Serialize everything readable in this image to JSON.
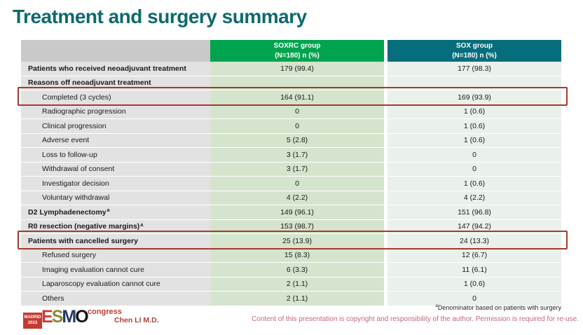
{
  "slide": {
    "title": "Treatment and surgery summary",
    "footnote_marker": "a",
    "footnote": "Denominator based on patients with surgery",
    "presenter": "Chen LI M.D.",
    "copyright": "Content of this presentation is copyright and responsibility of the author. Permission is required for re-use.",
    "logo": {
      "location": "MADRID",
      "year": "2023",
      "letters": [
        "E",
        "S",
        "M",
        "O"
      ],
      "congress": "congress"
    }
  },
  "colors": {
    "title": "#0e6a6e",
    "soxrc_header": "#00a44f",
    "sox_header": "#056d7c",
    "highlight_box": "#a63a2e"
  },
  "table": {
    "columns": [
      {
        "name": "SOXRC group",
        "sub": "(N=180)  n (%)"
      },
      {
        "name": "SOX group",
        "sub": "(N=180)  n (%)"
      }
    ],
    "rows": [
      {
        "label": "Patients who received neoadjuvant treatment",
        "sup": "",
        "soxrc": "179 (99.4)",
        "sox": "177 (98.3)",
        "bold": true,
        "indent": false,
        "boxed": false
      },
      {
        "label": "Reasons off neoadjuvant treatment",
        "sup": "",
        "soxrc": "",
        "sox": "",
        "bold": true,
        "indent": false,
        "boxed": false
      },
      {
        "label": "Completed (3 cycles)",
        "sup": "",
        "soxrc": "164 (91.1)",
        "sox": "169 (93.9)",
        "bold": false,
        "indent": true,
        "boxed": true
      },
      {
        "label": "Radiographic progression",
        "sup": "",
        "soxrc": "0",
        "sox": "1 (0.6)",
        "bold": false,
        "indent": true,
        "boxed": false
      },
      {
        "label": "Clinical progression",
        "sup": "",
        "soxrc": "0",
        "sox": "1 (0.6)",
        "bold": false,
        "indent": true,
        "boxed": false
      },
      {
        "label": "Adverse event",
        "sup": "",
        "soxrc": "5 (2.8)",
        "sox": "1 (0.6)",
        "bold": false,
        "indent": true,
        "boxed": false
      },
      {
        "label": "Loss to follow-up",
        "sup": "",
        "soxrc": "3 (1.7)",
        "sox": "0",
        "bold": false,
        "indent": true,
        "boxed": false
      },
      {
        "label": "Withdrawal of consent",
        "sup": "",
        "soxrc": "3 (1.7)",
        "sox": "0",
        "bold": false,
        "indent": true,
        "boxed": false
      },
      {
        "label": "Investigator decision",
        "sup": "",
        "soxrc": "0",
        "sox": "1 (0.6)",
        "bold": false,
        "indent": true,
        "boxed": false
      },
      {
        "label": "Voluntary withdrawal",
        "sup": "",
        "soxrc": "4 (2.2)",
        "sox": "4 (2.2)",
        "bold": false,
        "indent": true,
        "boxed": false
      },
      {
        "label": "D2 Lymphadenectomy",
        "sup": "a",
        "soxrc": "149 (96.1)",
        "sox": "151 (96.8)",
        "bold": true,
        "indent": false,
        "boxed": false
      },
      {
        "label": "R0 resection (negative margins)",
        "sup": "a",
        "soxrc": "153 (98.7)",
        "sox": "147 (94.2)",
        "bold": true,
        "indent": false,
        "boxed": false
      },
      {
        "label": "Patients with cancelled surgery",
        "sup": "",
        "soxrc": "25 (13.9)",
        "sox": "24 (13.3)",
        "bold": true,
        "indent": false,
        "boxed": true
      },
      {
        "label": "Refused surgery",
        "sup": "",
        "soxrc": "15 (8.3)",
        "sox": "12 (6.7)",
        "bold": false,
        "indent": true,
        "boxed": false
      },
      {
        "label": "Imaging evaluation cannot cure",
        "sup": "",
        "soxrc": "6 (3.3)",
        "sox": "11 (6.1)",
        "bold": false,
        "indent": true,
        "boxed": false
      },
      {
        "label": "Laparoscopy evaluation cannot cure",
        "sup": "",
        "soxrc": "2 (1.1)",
        "sox": "1 (0.6)",
        "bold": false,
        "indent": true,
        "boxed": false
      },
      {
        "label": "Others",
        "sup": "",
        "soxrc": "2 (1.1)",
        "sox": "0",
        "bold": false,
        "indent": true,
        "boxed": false
      }
    ]
  }
}
